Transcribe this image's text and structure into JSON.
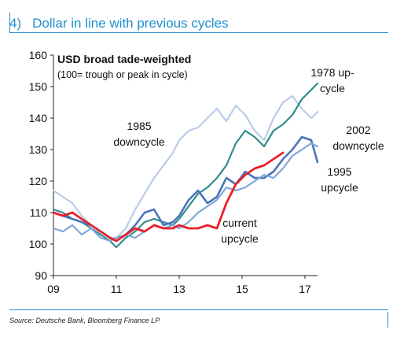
{
  "header": {
    "number": "4)",
    "title": "Dollar in line with previous cycles"
  },
  "source": "Source: Deutsche Bank, Bloomberg Finance LP",
  "colors": {
    "accent": "#1f8fcf",
    "current": "#e8202a",
    "c1978": "#2e8b8a",
    "c1985": "#b9cbe8",
    "c2002": "#4a73b8",
    "c1995": "#7fa6d8"
  },
  "chart_data": {
    "type": "line",
    "title": "USD broad  tade-weighted",
    "subtitle": "(100= trough or peak in cycle)",
    "xlabel": "",
    "ylabel": "",
    "xlim": [
      9,
      17.4
    ],
    "ylim": [
      90,
      160
    ],
    "xticks": [
      9,
      11,
      13,
      15,
      17
    ],
    "xtick_labels": [
      "09",
      "11",
      "13",
      "15",
      "17"
    ],
    "yticks": [
      90,
      100,
      110,
      120,
      130,
      140,
      150,
      160
    ],
    "grid": false,
    "series": [
      {
        "name": "1985 downcycle",
        "label_lines": [
          "1985",
          "downcycle"
        ],
        "color": "#b9cbe8",
        "x": [
          9.0,
          9.3,
          9.6,
          9.9,
          10.2,
          10.5,
          10.8,
          11.0,
          11.3,
          11.6,
          11.9,
          12.2,
          12.5,
          12.8,
          13.0,
          13.3,
          13.6,
          13.9,
          14.2,
          14.5,
          14.8,
          15.1,
          15.4,
          15.7,
          16.0,
          16.3,
          16.6,
          16.9,
          17.2,
          17.4
        ],
        "values": [
          117,
          115,
          113,
          109,
          106,
          104,
          102,
          102,
          105,
          111,
          116,
          121,
          125,
          129,
          133,
          136,
          137,
          140,
          143,
          139,
          144,
          141,
          136,
          133,
          140,
          145,
          147,
          143,
          140,
          142
        ]
      },
      {
        "name": "1978 up-cycle",
        "label_lines": [
          "1978 up-",
          "cycle"
        ],
        "color": "#2e8b8a",
        "x": [
          9.0,
          9.3,
          9.6,
          9.9,
          10.2,
          10.5,
          10.8,
          11.0,
          11.3,
          11.6,
          11.9,
          12.2,
          12.5,
          12.8,
          13.0,
          13.3,
          13.6,
          13.9,
          14.2,
          14.5,
          14.8,
          15.1,
          15.4,
          15.7,
          16.0,
          16.3,
          16.6,
          16.9,
          17.2,
          17.4
        ],
        "values": [
          111,
          110,
          108,
          107,
          105,
          103,
          101,
          99,
          102,
          104,
          107,
          108,
          107,
          106,
          108,
          112,
          116,
          118,
          121,
          125,
          132,
          136,
          134,
          131,
          136,
          138,
          141,
          146,
          149,
          151
        ]
      },
      {
        "name": "2002 downcycle",
        "label_lines": [
          "2002",
          "downcycle"
        ],
        "color": "#4a73b8",
        "x": [
          9.0,
          9.3,
          9.6,
          9.9,
          10.2,
          10.5,
          10.8,
          11.0,
          11.3,
          11.6,
          11.9,
          12.2,
          12.5,
          12.8,
          13.0,
          13.3,
          13.6,
          13.9,
          14.2,
          14.5,
          14.8,
          15.1,
          15.4,
          15.7,
          16.0,
          16.3,
          16.6,
          16.9,
          17.2,
          17.4
        ],
        "values": [
          110,
          109,
          108,
          107,
          106,
          104,
          102,
          101,
          103,
          106,
          110,
          111,
          106,
          107,
          109,
          114,
          117,
          113,
          115,
          121,
          119,
          123,
          121,
          121,
          123,
          127,
          130,
          134,
          133,
          126
        ]
      },
      {
        "name": "1995 upcycle",
        "label_lines": [
          "1995",
          "upcycle"
        ],
        "color": "#7fa6d8",
        "x": [
          9.0,
          9.3,
          9.6,
          9.9,
          10.2,
          10.5,
          10.8,
          11.0,
          11.3,
          11.6,
          11.9,
          12.2,
          12.5,
          12.8,
          13.0,
          13.3,
          13.6,
          13.9,
          14.2,
          14.5,
          14.8,
          15.1,
          15.4,
          15.7,
          16.0,
          16.3,
          16.6,
          16.9,
          17.2,
          17.4
        ],
        "values": [
          105,
          104,
          106,
          103,
          105,
          102,
          101,
          102,
          103,
          102,
          104,
          106,
          105,
          106,
          105,
          107,
          110,
          112,
          114,
          118,
          117,
          118,
          120,
          122,
          121,
          124,
          128,
          130,
          132,
          131
        ]
      },
      {
        "name": "current upcycle",
        "label_lines": [
          "current",
          "upcycle"
        ],
        "color": "#e8202a",
        "x": [
          9.0,
          9.3,
          9.6,
          9.9,
          10.2,
          10.5,
          10.8,
          11.0,
          11.3,
          11.6,
          11.9,
          12.2,
          12.5,
          12.8,
          13.0,
          13.3,
          13.6,
          13.9,
          14.2,
          14.5,
          14.8,
          15.1,
          15.4,
          15.7,
          16.0,
          16.3
        ],
        "values": [
          110,
          109,
          110,
          108,
          106,
          104,
          102,
          101,
          103,
          105,
          104,
          106,
          105,
          105,
          106,
          105,
          105,
          106,
          105,
          113,
          119,
          122,
          124,
          125,
          127,
          129
        ]
      }
    ]
  }
}
